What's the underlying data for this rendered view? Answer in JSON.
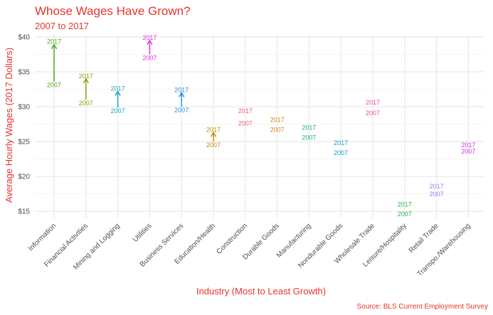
{
  "chart_data": {
    "type": "arrow",
    "title": "Whose Wages Have Grown?",
    "subtitle": "2007 to 2017",
    "xlabel": "Industry (Most to Least Growth)",
    "ylabel": "Average Hourly Wages (2017 Dollars)",
    "caption": "Source: BLS Current Employment Survey",
    "ylim": [
      14,
      40.3
    ],
    "y_ticks": [
      15,
      20,
      25,
      30,
      35,
      40
    ],
    "y_tick_labels": [
      "$15",
      "$20",
      "$25",
      "$30",
      "$35",
      "$40"
    ],
    "start_label": "2007",
    "end_label": "2017",
    "grid": true,
    "legend": "none",
    "categories": [
      "Information",
      "Financial Activities",
      "Mining and Logging",
      "Utilities",
      "Business Services",
      "Education/Health",
      "Construction",
      "Durable Goods",
      "Manufacturing",
      "Nondurable Goods",
      "Wholesale Trade",
      "Leisure/Hospitality",
      "Retail Trade",
      "Transpo./Warehousing"
    ],
    "series": [
      {
        "category": "Information",
        "y2007": 33.6,
        "y2017": 38.9,
        "color": "#4fa81c"
      },
      {
        "category": "Financial Activities",
        "y2007": 31.0,
        "y2017": 34.0,
        "color": "#7ea60a"
      },
      {
        "category": "Mining and Logging",
        "y2007": 29.9,
        "y2017": 32.2,
        "color": "#1fa6b9"
      },
      {
        "category": "Utilities",
        "y2007": 37.5,
        "y2017": 39.5,
        "color": "#e035e6"
      },
      {
        "category": "Business Services",
        "y2007": 30.0,
        "y2017": 32.0,
        "color": "#2490e0"
      },
      {
        "category": "Education/Health",
        "y2007": 25.0,
        "y2017": 26.3,
        "color": "#c08f00"
      },
      {
        "category": "Construction",
        "y2007": 28.1,
        "y2017": 29.0,
        "color": "#f25b6e"
      },
      {
        "category": "Durable Goods",
        "y2007": 27.2,
        "y2017": 27.7,
        "color": "#d2870c"
      },
      {
        "category": "Manufacturing",
        "y2007": 26.1,
        "y2017": 26.6,
        "color": "#17b37f"
      },
      {
        "category": "Nondurable Goods",
        "y2007": 23.9,
        "y2017": 24.4,
        "color": "#12a1d4"
      },
      {
        "category": "Wholesale Trade",
        "y2007": 29.6,
        "y2017": 30.2,
        "color": "#ee4aa5"
      },
      {
        "category": "Leisure/Hospitality",
        "y2007": 15.1,
        "y2017": 15.6,
        "color": "#2fb34a"
      },
      {
        "category": "Retail Trade",
        "y2007": 18.0,
        "y2017": 18.2,
        "color": "#8a7ff5"
      },
      {
        "category": "Transpo./Warehousing",
        "y2007": 24.1,
        "y2017": 24.1,
        "color": "#c837e8"
      }
    ]
  }
}
